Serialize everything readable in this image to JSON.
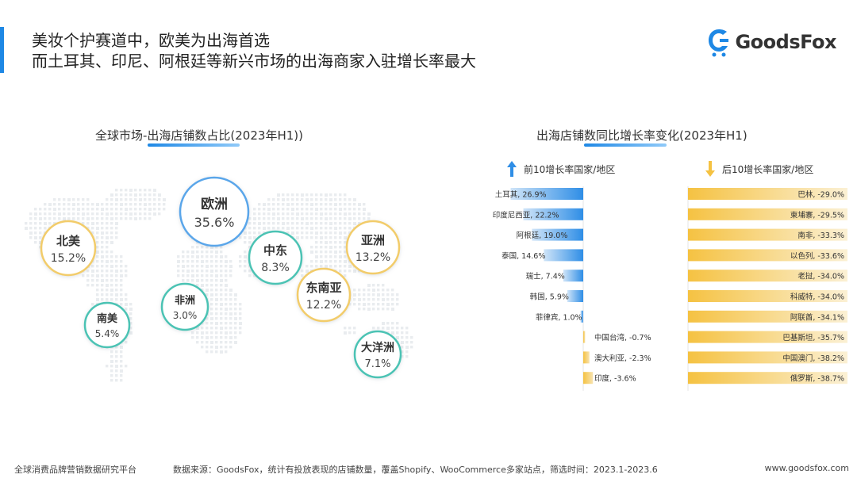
{
  "header": {
    "title_line1": "美妆个护赛道中，欧美为出海首选",
    "title_line2": "而土耳其、印尼、阿根廷等新兴市场的出海商家入驻增长率最大",
    "logo_text": "GoodsFox"
  },
  "colors": {
    "accent": "#1e88e5",
    "positive_bar": "#2f8ee6",
    "negative_bar": "#f5c242",
    "teal_ring": "#4cc3b4",
    "gold_ring": "#f2cc6a",
    "blue_ring": "#5aa6ea"
  },
  "chart_data": [
    {
      "type": "bubble-map",
      "title": "全球市场-出海店铺数占比(2023年H1))",
      "regions": [
        {
          "label": "欧洲",
          "value": "35.6%"
        },
        {
          "label": "北美",
          "value": "15.2%"
        },
        {
          "label": "亚洲",
          "value": "13.2%"
        },
        {
          "label": "东南亚",
          "value": "12.2%"
        },
        {
          "label": "中东",
          "value": "8.3%"
        },
        {
          "label": "大洋洲",
          "value": "7.1%"
        },
        {
          "label": "南美",
          "value": "5.4%"
        },
        {
          "label": "非洲",
          "value": "3.0%"
        }
      ]
    },
    {
      "type": "bar",
      "title": "出海店铺数同比增长率变化(2023年H1)",
      "legend_top": "前10增长率国家/地区",
      "legend_bottom": "后10增长率国家/地区",
      "left_series": [
        {
          "name": "土耳其",
          "value": 26.9
        },
        {
          "name": "印度尼西亚",
          "value": 22.2
        },
        {
          "name": "阿根廷",
          "value": 19.0
        },
        {
          "name": "泰国",
          "value": 14.6
        },
        {
          "name": "瑞士",
          "value": 7.4
        },
        {
          "name": "韩国",
          "value": 5.9
        },
        {
          "name": "菲律宾",
          "value": 1.0
        },
        {
          "name": "中国台湾",
          "value": -0.7
        },
        {
          "name": "澳大利亚",
          "value": -2.3
        },
        {
          "name": "印度",
          "value": -3.6
        }
      ],
      "right_series": [
        {
          "name": "巴林",
          "value": -29.0
        },
        {
          "name": "柬埔寨",
          "value": -29.5
        },
        {
          "name": "南非",
          "value": -33.3
        },
        {
          "name": "以色列",
          "value": -33.6
        },
        {
          "name": "老挝",
          "value": -34.0
        },
        {
          "name": "科威特",
          "value": -34.0
        },
        {
          "name": "阿联酋",
          "value": -34.1
        },
        {
          "name": "巴基斯坦",
          "value": -35.7
        },
        {
          "name": "中国澳门",
          "value": -38.2
        },
        {
          "name": "俄罗斯",
          "value": -38.7
        }
      ]
    }
  ],
  "footer": {
    "left": "全球消费品牌营销数据研究平台",
    "source": "数据来源：GoodsFox，统计有投放表现的店铺数量，覆盖Shopify、WooCommerce多家站点，筛选时间：2023.1-2023.6",
    "right": "www.goodsfox.com"
  }
}
